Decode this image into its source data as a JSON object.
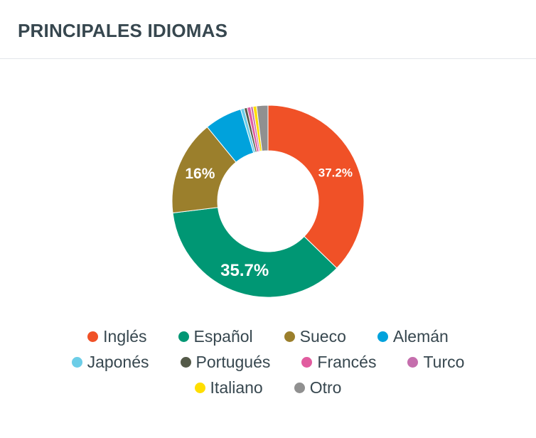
{
  "header": {
    "title": "PRINCIPALES IDIOMAS"
  },
  "chart_data": {
    "type": "pie",
    "title": "PRINCIPALES IDIOMAS",
    "donut": true,
    "legend_position": "bottom",
    "categories": [
      "Inglés",
      "Español",
      "Sueco",
      "Alemán",
      "Japonés",
      "Portugués",
      "Francés",
      "Turco",
      "Italiano",
      "Otro"
    ],
    "values": [
      37.2,
      35.7,
      16.0,
      6.3,
      0.6,
      0.5,
      0.6,
      0.4,
      0.6,
      1.9
    ],
    "value_labels": [
      "37.2%",
      "35.7%",
      "16%",
      "",
      "",
      "",
      "",
      "",
      "",
      ""
    ],
    "colors": [
      "#f05127",
      "#009774",
      "#9b7f2c",
      "#00a2dc",
      "#6ccde7",
      "#545a48",
      "#e15c9f",
      "#c56ead",
      "#ffde00",
      "#909090"
    ]
  }
}
